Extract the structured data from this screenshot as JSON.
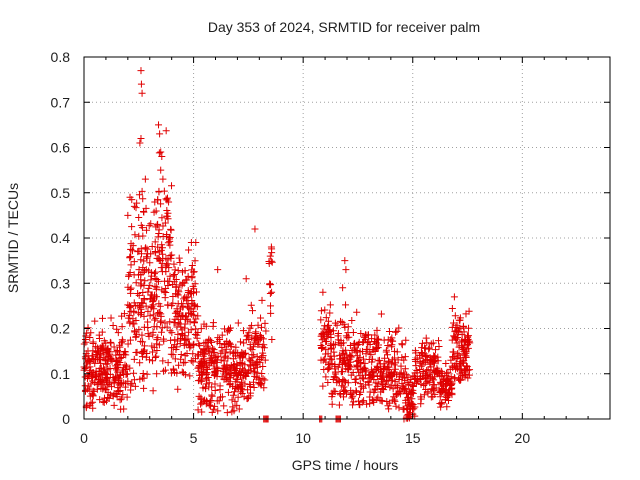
{
  "chart_data": {
    "type": "scatter",
    "title": "Day 353 of 2024, SRMTID for receiver palm",
    "xlabel": "GPS time / hours",
    "ylabel": "SRMTID / TECUs",
    "xlim": [
      0,
      24
    ],
    "ylim": [
      0,
      0.8
    ],
    "grid": true,
    "marker": "+",
    "color": "#e00000",
    "x_ticks": [
      "0",
      "5",
      "10",
      "15",
      "20"
    ],
    "y_ticks": [
      "0",
      "0.1",
      "0.2",
      "0.3",
      "0.4",
      "0.5",
      "0.6",
      "0.7",
      "0.8"
    ],
    "x_tick_values": [
      0,
      5,
      10,
      15,
      20
    ],
    "y_tick_values": [
      0,
      0.1,
      0.2,
      0.3,
      0.4,
      0.5,
      0.6,
      0.7,
      0.8
    ],
    "series": [
      {
        "name": "SRMTID",
        "clusters": [
          {
            "from": 0.0,
            "to": 2.0,
            "count": 260,
            "low": 0.02,
            "mean": 0.11,
            "spread": 0.045
          },
          {
            "from": 2.0,
            "to": 3.3,
            "count": 190,
            "low": 0.06,
            "mean": 0.29,
            "spread": 0.11
          },
          {
            "from": 3.3,
            "to": 4.0,
            "count": 110,
            "low": 0.08,
            "mean": 0.33,
            "spread": 0.11
          },
          {
            "from": 4.0,
            "to": 5.2,
            "count": 160,
            "low": 0.06,
            "mean": 0.22,
            "spread": 0.07
          },
          {
            "from": 5.2,
            "to": 7.6,
            "count": 300,
            "low": 0.01,
            "mean": 0.11,
            "spread": 0.045
          },
          {
            "from": 7.6,
            "to": 8.3,
            "count": 70,
            "low": 0.0,
            "mean": 0.15,
            "spread": 0.05
          },
          {
            "from": 8.35,
            "to": 8.6,
            "count": 14,
            "low": 0.14,
            "mean": 0.3,
            "spread": 0.05
          },
          {
            "from": 10.8,
            "to": 11.3,
            "count": 60,
            "low": 0.07,
            "mean": 0.17,
            "spread": 0.05
          },
          {
            "from": 11.3,
            "to": 13.5,
            "count": 240,
            "low": 0.03,
            "mean": 0.12,
            "spread": 0.045
          },
          {
            "from": 13.5,
            "to": 14.7,
            "count": 130,
            "low": 0.02,
            "mean": 0.1,
            "spread": 0.045
          },
          {
            "from": 14.7,
            "to": 15.1,
            "count": 50,
            "low": 0.0,
            "mean": 0.05,
            "spread": 0.03
          },
          {
            "from": 15.1,
            "to": 16.2,
            "count": 120,
            "low": 0.03,
            "mean": 0.11,
            "spread": 0.035
          },
          {
            "from": 16.2,
            "to": 16.8,
            "count": 70,
            "low": 0.02,
            "mean": 0.07,
            "spread": 0.02
          },
          {
            "from": 16.8,
            "to": 17.6,
            "count": 110,
            "low": 0.08,
            "mean": 0.15,
            "spread": 0.04
          }
        ],
        "peaks": [
          {
            "x": 2.6,
            "y": 0.77
          },
          {
            "x": 2.62,
            "y": 0.74
          },
          {
            "x": 2.65,
            "y": 0.72
          },
          {
            "x": 3.4,
            "y": 0.65
          },
          {
            "x": 3.45,
            "y": 0.63
          },
          {
            "x": 3.5,
            "y": 0.59
          },
          {
            "x": 3.55,
            "y": 0.58
          },
          {
            "x": 2.55,
            "y": 0.61
          },
          {
            "x": 2.6,
            "y": 0.62
          },
          {
            "x": 3.6,
            "y": 0.53
          },
          {
            "x": 3.5,
            "y": 0.55
          },
          {
            "x": 2.8,
            "y": 0.53
          },
          {
            "x": 2.1,
            "y": 0.49
          },
          {
            "x": 2.0,
            "y": 0.45
          },
          {
            "x": 7.8,
            "y": 0.42
          },
          {
            "x": 8.55,
            "y": 0.38
          },
          {
            "x": 8.5,
            "y": 0.36
          },
          {
            "x": 11.9,
            "y": 0.35
          },
          {
            "x": 11.95,
            "y": 0.33
          },
          {
            "x": 16.9,
            "y": 0.27
          },
          {
            "x": 6.1,
            "y": 0.33
          },
          {
            "x": 4.9,
            "y": 0.39
          },
          {
            "x": 5.1,
            "y": 0.39
          },
          {
            "x": 7.4,
            "y": 0.31
          },
          {
            "x": 11.8,
            "y": 0.29
          },
          {
            "x": 10.9,
            "y": 0.28
          },
          {
            "x": 2.3,
            "y": 0.47
          }
        ],
        "zero_points": [
          8.2,
          8.25,
          8.3,
          8.35,
          8.4,
          10.75,
          10.8,
          10.85,
          11.5,
          11.55,
          11.6,
          11.65,
          11.7,
          14.6
        ]
      }
    ]
  }
}
